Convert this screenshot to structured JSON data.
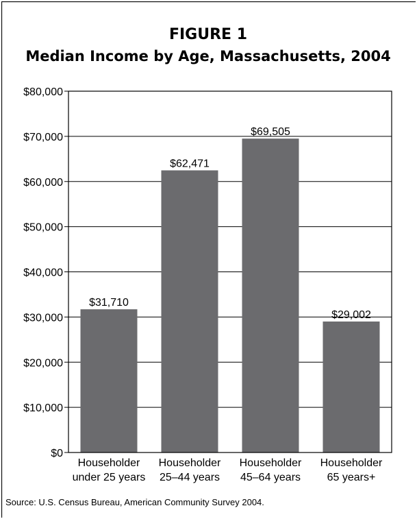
{
  "figure_label": "FIGURE 1",
  "source": "Source: U.S. Census Bureau, American Community Survey 2004.",
  "colors": {
    "bar": "#6b6b6e",
    "grid": "#000000",
    "frame": "#000000"
  },
  "chart_data": {
    "type": "bar",
    "title": "Median Income by Age, Massachusetts, 2004",
    "xlabel": "",
    "ylabel": "",
    "categories": [
      [
        "Householder",
        "under 25 years"
      ],
      [
        "Householder",
        "25–44 years"
      ],
      [
        "Householder",
        "45–64 years"
      ],
      [
        "Householder",
        "65 years+"
      ]
    ],
    "values": [
      31710,
      62471,
      69505,
      29002
    ],
    "data_labels": [
      "$31,710",
      "$62,471",
      "$69,505",
      "$29,002"
    ],
    "ylim": [
      0,
      80000
    ],
    "yticks": [
      0,
      10000,
      20000,
      30000,
      40000,
      50000,
      60000,
      70000,
      80000
    ],
    "ytick_labels": [
      "$0",
      "$10,000",
      "$20,000",
      "$30,000",
      "$40,000",
      "$50,000",
      "$60,000",
      "$70,000",
      "$80,000"
    ],
    "grid": true,
    "legend": "none"
  }
}
